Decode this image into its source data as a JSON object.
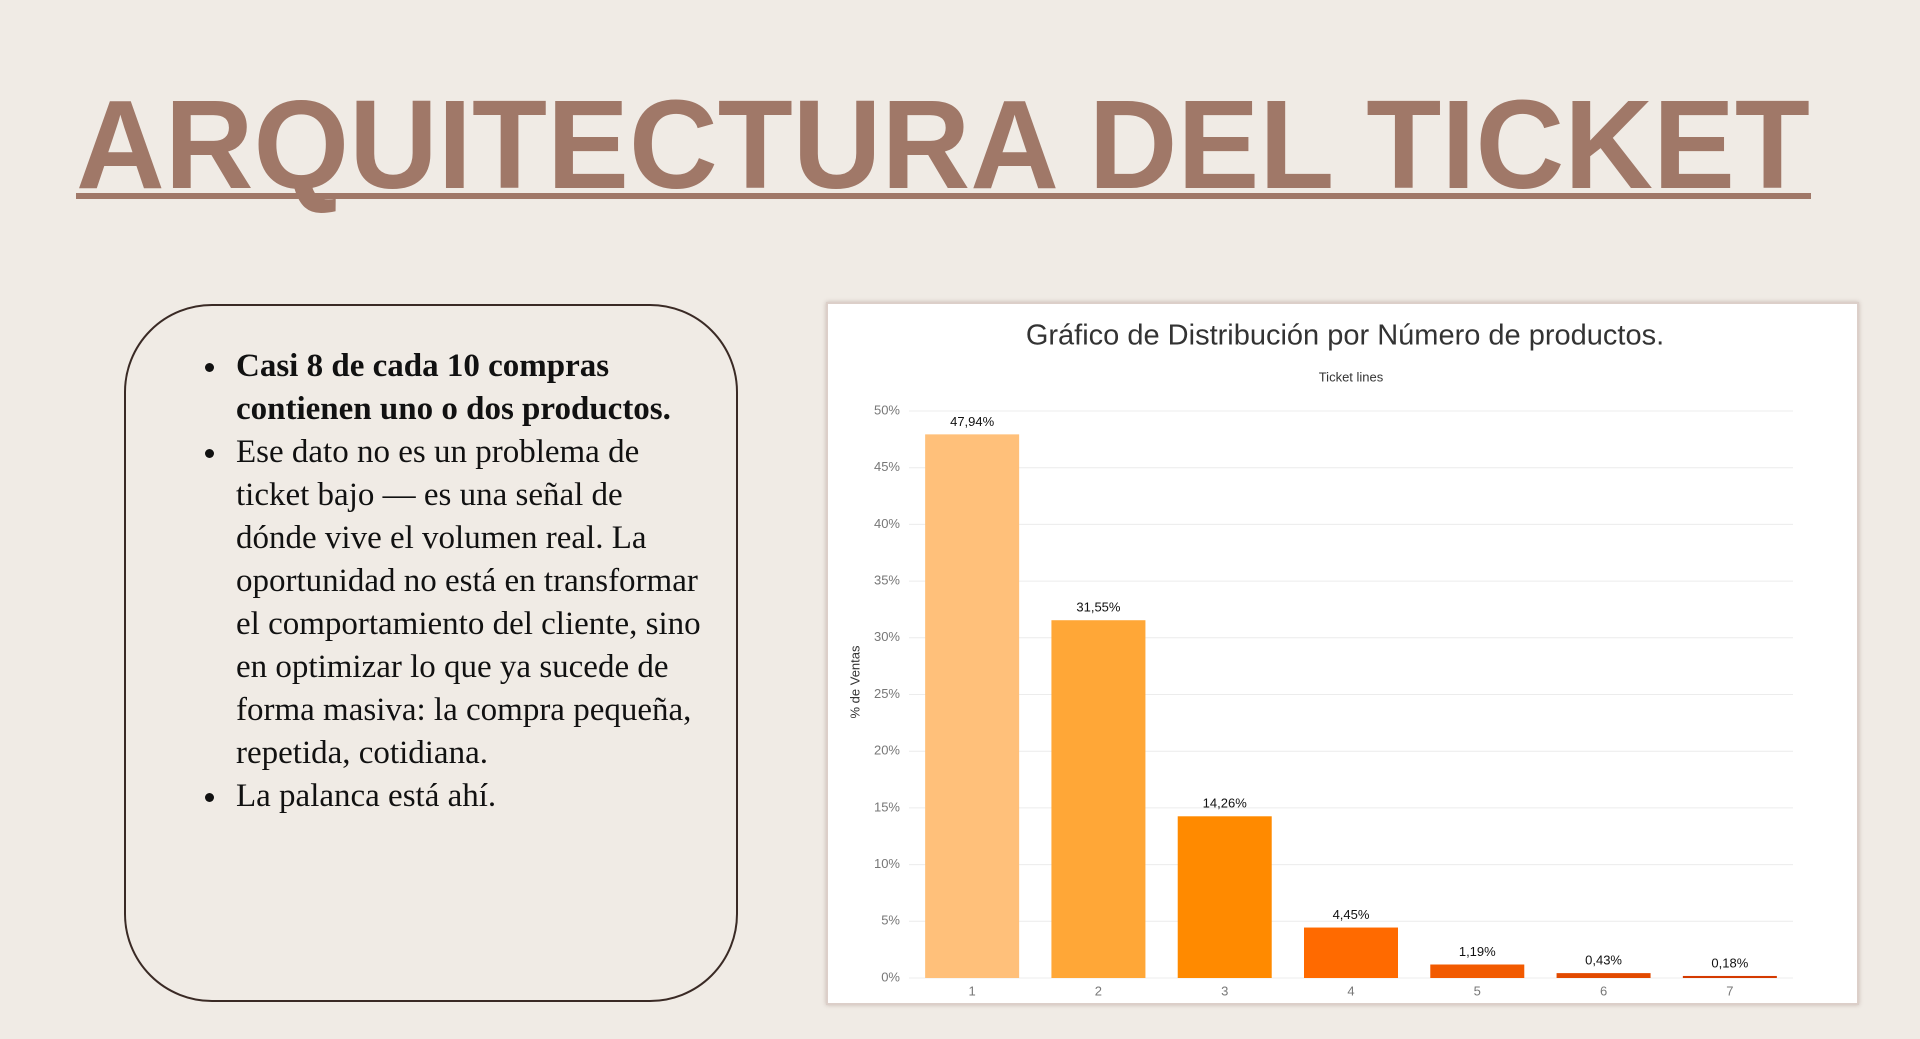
{
  "header": {
    "title": "ARQUITECTURA DEL TICKET"
  },
  "bullets": [
    "Casi 8 de cada 10 compras contienen uno o dos productos.",
    "Ese dato no es un problema de ticket bajo — es una señal de dónde vive el volumen real. La oportunidad no está en transformar el comportamiento del cliente, sino en optimizar lo que ya sucede de forma masiva: la compra pequeña, repetida, cotidiana.",
    "La palanca está ahí."
  ],
  "chart_data": {
    "type": "bar",
    "title": "Gráfico de Distribución por Número de productos.",
    "subtitle": "Ticket lines",
    "y_label": "% de Ventas",
    "categories": [
      "1",
      "2",
      "3",
      "4",
      "5",
      "6",
      "7"
    ],
    "values": [
      47.94,
      31.55,
      14.26,
      4.45,
      1.19,
      0.43,
      0.18
    ],
    "value_labels": [
      "47,94%",
      "31,55%",
      "14,26%",
      "4,45%",
      "1,19%",
      "0,43%",
      "0,18%"
    ],
    "colors": [
      "#ffc07a",
      "#ffa737",
      "#ff8a00",
      "#ff6a00",
      "#f25a00",
      "#e24a00",
      "#d43a00"
    ],
    "ylim": [
      0,
      50
    ],
    "yticks": [
      {
        "value": 0,
        "label": "0%"
      },
      {
        "value": 5,
        "label": "5%"
      },
      {
        "value": 10,
        "label": "10%"
      },
      {
        "value": 15,
        "label": "15%"
      },
      {
        "value": 20,
        "label": "20%"
      },
      {
        "value": 25,
        "label": "25%"
      },
      {
        "value": 30,
        "label": "30%"
      },
      {
        "value": 35,
        "label": "35%"
      },
      {
        "value": 40,
        "label": "40%"
      },
      {
        "value": 45,
        "label": "45%"
      },
      {
        "value": 50,
        "label": "50%"
      }
    ],
    "grid": true
  }
}
